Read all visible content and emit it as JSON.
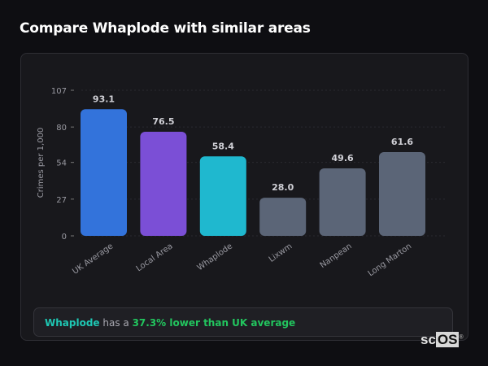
{
  "title": "Compare Whaplode with similar areas",
  "chart_data": {
    "type": "bar",
    "title": "",
    "ylabel": "Crimes per 1,000",
    "xlabel": "",
    "ylim": [
      0,
      107
    ],
    "yticks": [
      0,
      27,
      54,
      80,
      107
    ],
    "grid": true,
    "categories": [
      "UK Average",
      "Local Area",
      "Whaplode",
      "Lixwm",
      "Nanpean",
      "Long Marton"
    ],
    "values": [
      93.1,
      76.5,
      58.4,
      28.0,
      49.6,
      61.6
    ],
    "labels": [
      "93.1",
      "76.5",
      "58.4",
      "28.0",
      "49.6",
      "61.6"
    ],
    "colors": [
      "#3373db",
      "#7b4fd6",
      "#1fb8cf",
      "#5b6577",
      "#5b6577",
      "#5b6577"
    ]
  },
  "summary": {
    "area": "Whaplode",
    "middle": " has a ",
    "comparison": "37.3% lower than UK average"
  },
  "logo": {
    "a": "sc",
    "b": "OS",
    "mark": "®"
  }
}
